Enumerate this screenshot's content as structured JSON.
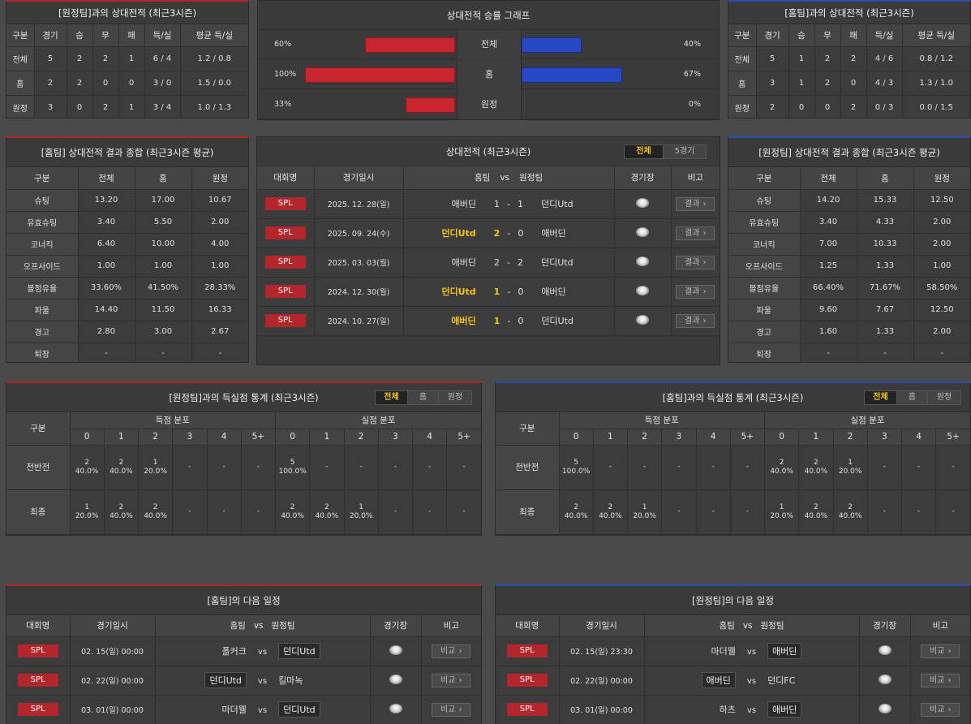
{
  "away_h2h": {
    "title": "[원정팀]과의 상대전적 (최근3시즌)",
    "headers": [
      "구분",
      "경기",
      "승",
      "무",
      "패",
      "득/실",
      "평균 득/실"
    ],
    "rows": [
      [
        "전체",
        "5",
        "2",
        "2",
        "1",
        "6 / 4",
        "1.2 / 0.8"
      ],
      [
        "홈",
        "2",
        "2",
        "0",
        "0",
        "3 / 0",
        "1.5 / 0.0"
      ],
      [
        "원정",
        "3",
        "0",
        "2",
        "1",
        "3 / 4",
        "1.0 / 1.3"
      ]
    ]
  },
  "winrate": {
    "title": "상대전적 승률 그래프",
    "rows": [
      {
        "label": "전체",
        "left_pct": "60%",
        "right_pct": "40%",
        "left_value": 0.6,
        "right_value": 0.4
      },
      {
        "label": "홈",
        "left_pct": "100%",
        "right_pct": "67%",
        "left_value": 1.0,
        "right_value": 0.67
      },
      {
        "label": "원정",
        "left_pct": "33%",
        "right_pct": "0%",
        "left_value": 0.33,
        "right_value": 0.0
      }
    ]
  },
  "home_h2h": {
    "title": "[홈팀]과의 상대전적 (최근3시즌)",
    "headers": [
      "구분",
      "경기",
      "승",
      "무",
      "패",
      "득/실",
      "평균 득/실"
    ],
    "rows": [
      [
        "전체",
        "5",
        "1",
        "2",
        "2",
        "4 / 6",
        "0.8 / 1.2"
      ],
      [
        "홈",
        "3",
        "1",
        "2",
        "0",
        "4 / 3",
        "1.3 / 1.0"
      ],
      [
        "원정",
        "2",
        "0",
        "0",
        "2",
        "0 / 3",
        "0.0 / 1.5"
      ]
    ]
  },
  "home_summary": {
    "title": "[홈팀] 상대전적 결과 종합 (최근3시즌 평균)",
    "headers": [
      "구분",
      "전체",
      "홈",
      "원정"
    ],
    "rows": [
      [
        "슈팅",
        "13.20",
        "17.00",
        "10.67"
      ],
      [
        "유효슈팅",
        "3.40",
        "5.50",
        "2.00"
      ],
      [
        "코너킥",
        "6.40",
        "10.00",
        "4.00"
      ],
      [
        "오프사이드",
        "1.00",
        "1.00",
        "1.00"
      ],
      [
        "볼점유율",
        "33.60%",
        "41.50%",
        "28.33%"
      ],
      [
        "파울",
        "14.40",
        "11.50",
        "16.33"
      ],
      [
        "경고",
        "2.80",
        "3.00",
        "2.67"
      ],
      [
        "퇴장",
        "-",
        "-",
        "-"
      ]
    ]
  },
  "recent": {
    "title": "상대전적 (최근3시즌)",
    "tabs": [
      "전체",
      "5경기"
    ],
    "headers": {
      "league": "대회명",
      "date": "경기일시",
      "home": "홈팀",
      "vs": "vs",
      "away": "원정팀",
      "venue": "경기장",
      "note": "비고"
    },
    "rows": [
      {
        "league": "SPL",
        "date": "2025. 12. 28(일)",
        "home": "애버딘",
        "hs": "1",
        "sep": "-",
        "as": "1",
        "away": "던디Utd",
        "btn": "결과",
        "hl": "none"
      },
      {
        "league": "SPL",
        "date": "2025. 09. 24(수)",
        "home": "던디Utd",
        "hs": "2",
        "sep": "-",
        "as": "0",
        "away": "애버딘",
        "btn": "결과",
        "hl": "home"
      },
      {
        "league": "SPL",
        "date": "2025. 03. 03(월)",
        "home": "애버딘",
        "hs": "2",
        "sep": "-",
        "as": "2",
        "away": "던디Utd",
        "btn": "결과",
        "hl": "none"
      },
      {
        "league": "SPL",
        "date": "2024. 12. 30(월)",
        "home": "던디Utd",
        "hs": "1",
        "sep": "-",
        "as": "0",
        "away": "애버딘",
        "btn": "결과",
        "hl": "home"
      },
      {
        "league": "SPL",
        "date": "2024. 10. 27(일)",
        "home": "애버딘",
        "hs": "1",
        "sep": "-",
        "as": "0",
        "away": "던디Utd",
        "btn": "결과",
        "hl": "home"
      }
    ]
  },
  "away_summary": {
    "title": "[원정팀] 상대전적 결과 종합 (최근3시즌 평균)",
    "headers": [
      "구분",
      "전체",
      "홈",
      "원정"
    ],
    "rows": [
      [
        "슈팅",
        "14.20",
        "15.33",
        "12.50"
      ],
      [
        "유효슈팅",
        "3.40",
        "4.33",
        "2.00"
      ],
      [
        "코너킥",
        "7.00",
        "10.33",
        "2.00"
      ],
      [
        "오프사이드",
        "1.25",
        "1.33",
        "1.00"
      ],
      [
        "볼점유율",
        "66.40%",
        "71.67%",
        "58.50%"
      ],
      [
        "파울",
        "9.60",
        "7.67",
        "12.50"
      ],
      [
        "경고",
        "1.60",
        "1.33",
        "2.00"
      ],
      [
        "퇴장",
        "-",
        "-",
        "-"
      ]
    ]
  },
  "goals_away": {
    "title": "[원정팀]과의 득실점 통계 (최근3시즌)",
    "tabs": [
      "전체",
      "홈",
      "원정"
    ],
    "col_label": "구분",
    "for_label": "득점 분포",
    "against_label": "실점 분포",
    "buckets": [
      "0",
      "1",
      "2",
      "3",
      "4",
      "5+"
    ],
    "rows": [
      {
        "label": "전반전",
        "for": [
          [
            "2",
            "40.0%"
          ],
          [
            "2",
            "40.0%"
          ],
          [
            "1",
            "20.0%"
          ],
          [
            "-",
            ""
          ],
          [
            "-",
            ""
          ],
          [
            "-",
            ""
          ]
        ],
        "against": [
          [
            "5",
            "100.0%"
          ],
          [
            "-",
            ""
          ],
          [
            "-",
            ""
          ],
          [
            "-",
            ""
          ],
          [
            "-",
            ""
          ],
          [
            "-",
            ""
          ]
        ]
      },
      {
        "label": "최종",
        "for": [
          [
            "1",
            "20.0%"
          ],
          [
            "2",
            "40.0%"
          ],
          [
            "2",
            "40.0%"
          ],
          [
            "-",
            ""
          ],
          [
            "-",
            ""
          ],
          [
            "-",
            ""
          ]
        ],
        "against": [
          [
            "2",
            "40.0%"
          ],
          [
            "2",
            "40.0%"
          ],
          [
            "1",
            "20.0%"
          ],
          [
            "-",
            ""
          ],
          [
            "-",
            ""
          ],
          [
            "-",
            ""
          ]
        ]
      }
    ]
  },
  "goals_home": {
    "title": "[홈팀]과의 득실점 통계 (최근3시즌)",
    "tabs": [
      "전체",
      "홈",
      "원정"
    ],
    "col_label": "구분",
    "for_label": "득점 분포",
    "against_label": "실점 분포",
    "buckets": [
      "0",
      "1",
      "2",
      "3",
      "4",
      "5+"
    ],
    "rows": [
      {
        "label": "전반전",
        "for": [
          [
            "5",
            "100.0%"
          ],
          [
            "-",
            ""
          ],
          [
            "-",
            ""
          ],
          [
            "-",
            ""
          ],
          [
            "-",
            ""
          ],
          [
            "-",
            ""
          ]
        ],
        "against": [
          [
            "2",
            "40.0%"
          ],
          [
            "2",
            "40.0%"
          ],
          [
            "1",
            "20.0%"
          ],
          [
            "-",
            ""
          ],
          [
            "-",
            ""
          ],
          [
            "-",
            ""
          ]
        ]
      },
      {
        "label": "최종",
        "for": [
          [
            "2",
            "40.0%"
          ],
          [
            "2",
            "40.0%"
          ],
          [
            "1",
            "20.0%"
          ],
          [
            "-",
            ""
          ],
          [
            "-",
            ""
          ],
          [
            "-",
            ""
          ]
        ],
        "against": [
          [
            "1",
            "20.0%"
          ],
          [
            "2",
            "40.0%"
          ],
          [
            "2",
            "40.0%"
          ],
          [
            "-",
            ""
          ],
          [
            "-",
            ""
          ],
          [
            "-",
            ""
          ]
        ]
      }
    ]
  },
  "next_home": {
    "title": "[홈팀]의 다음 일정",
    "headers": {
      "league": "대회명",
      "date": "경기일시",
      "home": "홈팀",
      "vs": "vs",
      "away": "원정팀",
      "venue": "경기장",
      "note": "비고"
    },
    "rows": [
      {
        "league": "SPL",
        "date": "02. 15(일) 00:00",
        "home": "폴커크",
        "away": "던디Utd",
        "boxed": "away",
        "btn": "비교"
      },
      {
        "league": "SPL",
        "date": "02. 22(일) 00:00",
        "home": "던디Utd",
        "away": "킬마녹",
        "boxed": "home",
        "btn": "비교"
      },
      {
        "league": "SPL",
        "date": "03. 01(일) 00:00",
        "home": "마더웰",
        "away": "던디Utd",
        "boxed": "away",
        "btn": "비교"
      }
    ]
  },
  "next_away": {
    "title": "[원정팀]의 다음 일정",
    "headers": {
      "league": "대회명",
      "date": "경기일시",
      "home": "홈팀",
      "vs": "vs",
      "away": "원정팀",
      "venue": "경기장",
      "note": "비고"
    },
    "rows": [
      {
        "league": "SPL",
        "date": "02. 15(일) 23:30",
        "home": "마더웰",
        "away": "애버딘",
        "boxed": "away",
        "btn": "비교"
      },
      {
        "league": "SPL",
        "date": "02. 22(일) 00:00",
        "home": "애버딘",
        "away": "던디FC",
        "boxed": "home",
        "btn": "비교"
      },
      {
        "league": "SPL",
        "date": "03. 01(일) 00:00",
        "home": "하츠",
        "away": "애버딘",
        "boxed": "away",
        "btn": "비교"
      }
    ]
  }
}
